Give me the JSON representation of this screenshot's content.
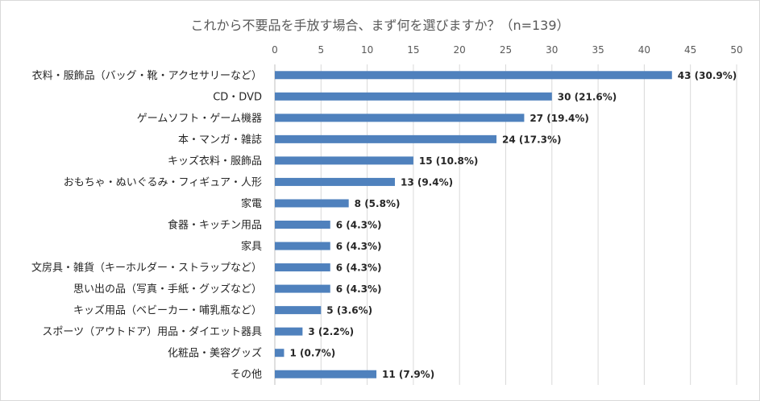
{
  "chart_data": {
    "type": "bar",
    "orientation": "horizontal",
    "title": "これから不要品を手放す場合、まず何を選びますか？（n=139）",
    "xlim": [
      0,
      50
    ],
    "x_ticks": [
      0,
      5,
      10,
      15,
      20,
      25,
      30,
      35,
      40,
      45,
      50
    ],
    "x_tick_labels": [
      "0",
      "5",
      "10",
      "15",
      "20",
      "25",
      "30",
      "35",
      "40",
      "45",
      "50"
    ],
    "grid": true,
    "bar_color": "#4f81bd",
    "categories": [
      "衣料・服飾品（バッグ・靴・アクセサリーなど）",
      "CD・DVD",
      "ゲームソフト・ゲーム機器",
      "本・マンガ・雑誌",
      "キッズ衣料・服飾品",
      "おもちゃ・ぬいぐるみ・フィギュア・人形",
      "家電",
      "食器・キッチン用品",
      "家具",
      "文房具・雑貨（キーホルダー・ストラップなど）",
      "思い出の品（写真・手紙・グッズなど）",
      "キッズ用品（ベビーカー・哺乳瓶など）",
      "スポーツ（アウトドア）用品・ダイエット器具",
      "化粧品・美容グッズ",
      "その他"
    ],
    "values": [
      43,
      30,
      27,
      24,
      15,
      13,
      8,
      6,
      6,
      6,
      6,
      5,
      3,
      1,
      11
    ],
    "data_labels": [
      "43 (30.9%)",
      "30 (21.6%)",
      "27 (19.4%)",
      "24 (17.3%)",
      "15 (10.8%)",
      "13 (9.4%)",
      "8 (5.8%)",
      "6 (4.3%)",
      "6 (4.3%)",
      "6 (4.3%)",
      "6 (4.3%)",
      "5 (3.6%)",
      "3 (2.2%)",
      "1 (0.7%)",
      "11 (7.9%)"
    ]
  }
}
